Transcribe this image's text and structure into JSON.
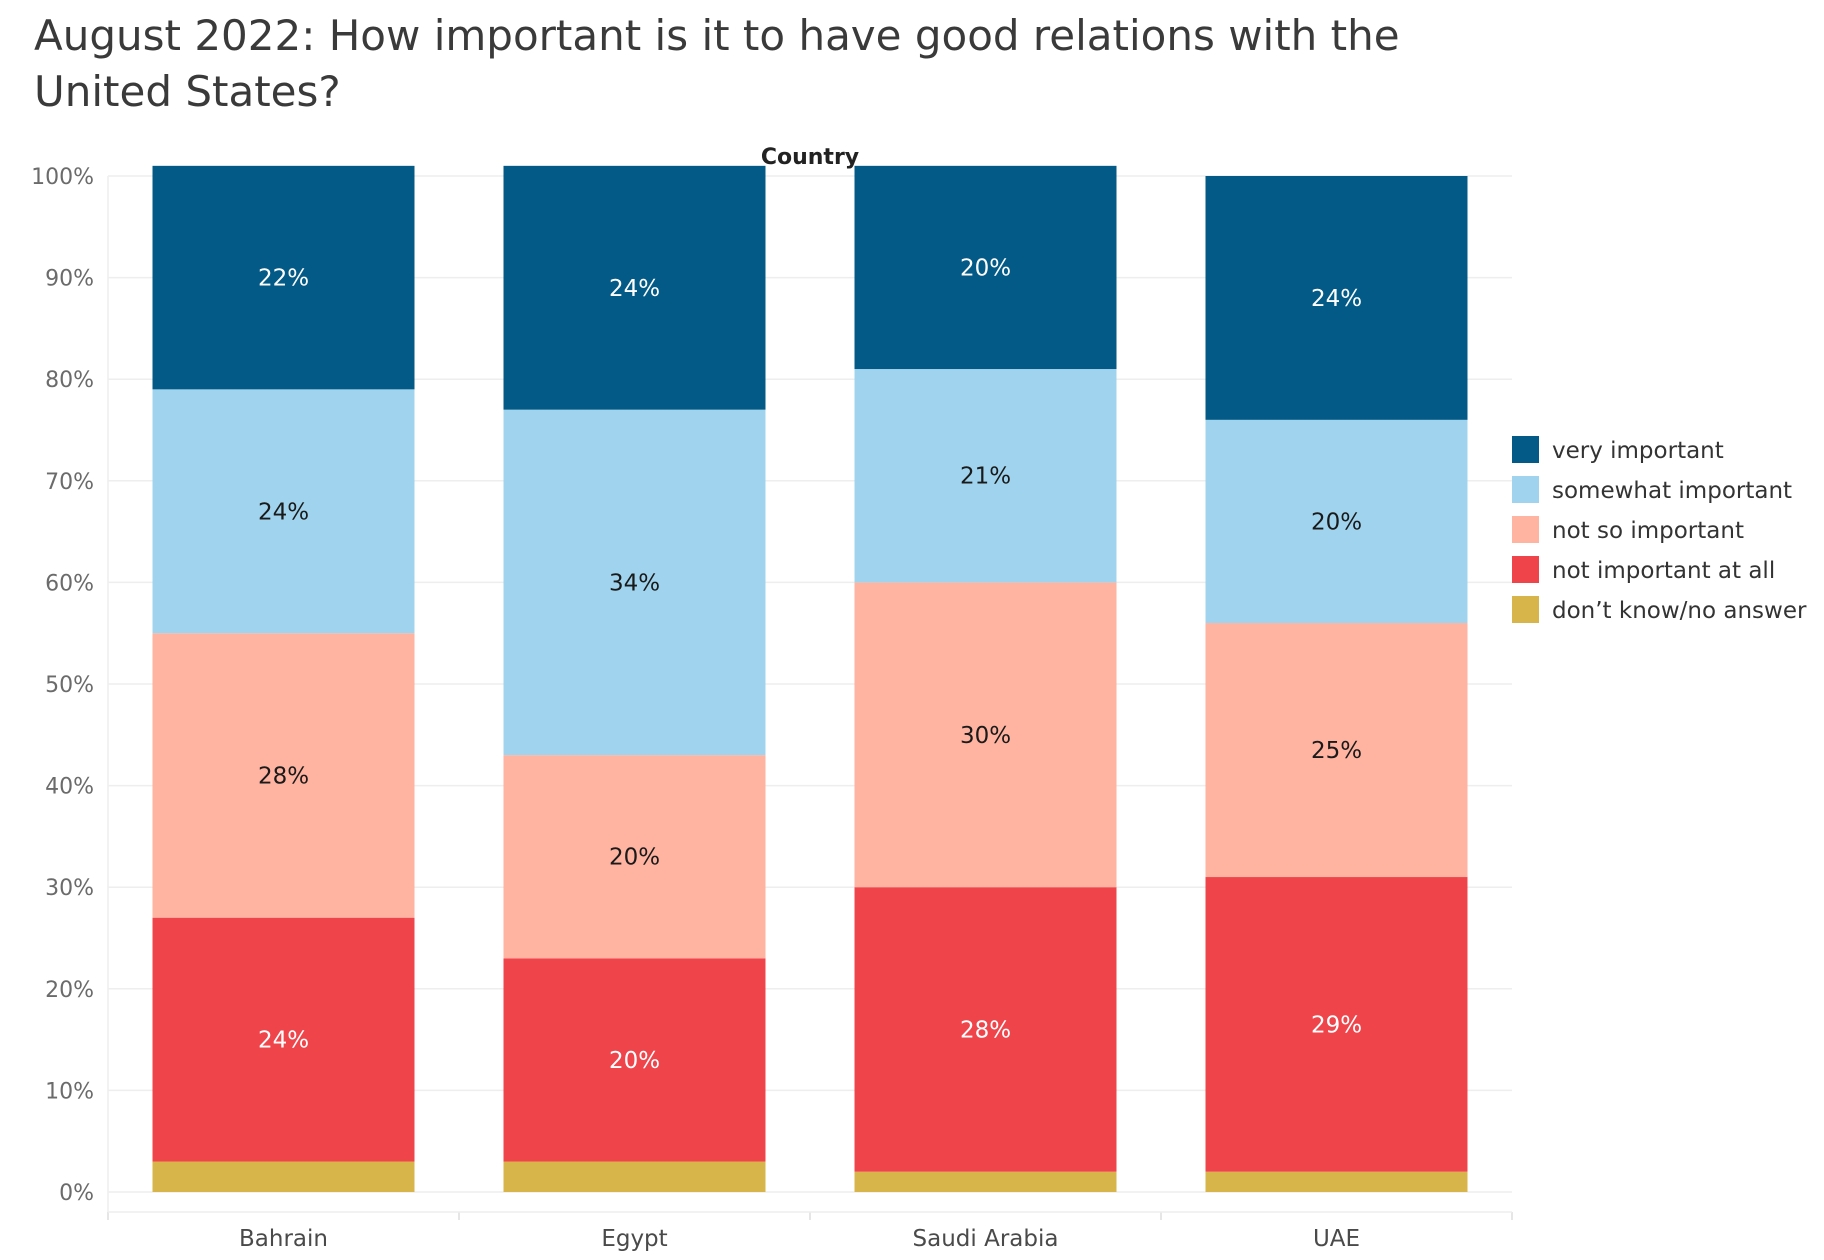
{
  "title": "August 2022: How important is it to have good relations with the United States?",
  "chart_data": {
    "type": "bar",
    "stacked": true,
    "column_header": "Country",
    "categories": [
      "Bahrain",
      "Egypt",
      "Saudi Arabia",
      "UAE"
    ],
    "ylim": [
      0,
      100
    ],
    "yticks": [
      "0%",
      "10%",
      "20%",
      "30%",
      "40%",
      "50%",
      "60%",
      "70%",
      "80%",
      "90%",
      "100%"
    ],
    "grid": true,
    "legend_position": "right",
    "series": [
      {
        "name": "don’t know/no answer",
        "color": "#d8b54a",
        "label_color": "",
        "values": [
          3,
          3,
          2,
          2
        ],
        "labels": [
          "",
          "",
          "",
          ""
        ]
      },
      {
        "name": "not important at all",
        "color": "#f0444b",
        "label_color": "#ffffff",
        "values": [
          24,
          20,
          28,
          29
        ],
        "labels": [
          "24%",
          "20%",
          "28%",
          "29%"
        ]
      },
      {
        "name": "not so important",
        "color": "#ffb3a1",
        "label_color": "#1a1a1a",
        "values": [
          28,
          20,
          30,
          25
        ],
        "labels": [
          "28%",
          "20%",
          "30%",
          "25%"
        ]
      },
      {
        "name": "somewhat important",
        "color": "#a0d4ee",
        "label_color": "#1a1a1a",
        "values": [
          24,
          34,
          21,
          20
        ],
        "labels": [
          "24%",
          "34%",
          "21%",
          "20%"
        ]
      },
      {
        "name": "very important",
        "color": "#035a86",
        "label_color": "#ffffff",
        "values": [
          22,
          24,
          20,
          24
        ],
        "labels": [
          "22%",
          "24%",
          "20%",
          "24%"
        ]
      }
    ],
    "legend_order": [
      "very important",
      "somewhat important",
      "not so important",
      "not important at all",
      "don’t know/no answer"
    ]
  }
}
